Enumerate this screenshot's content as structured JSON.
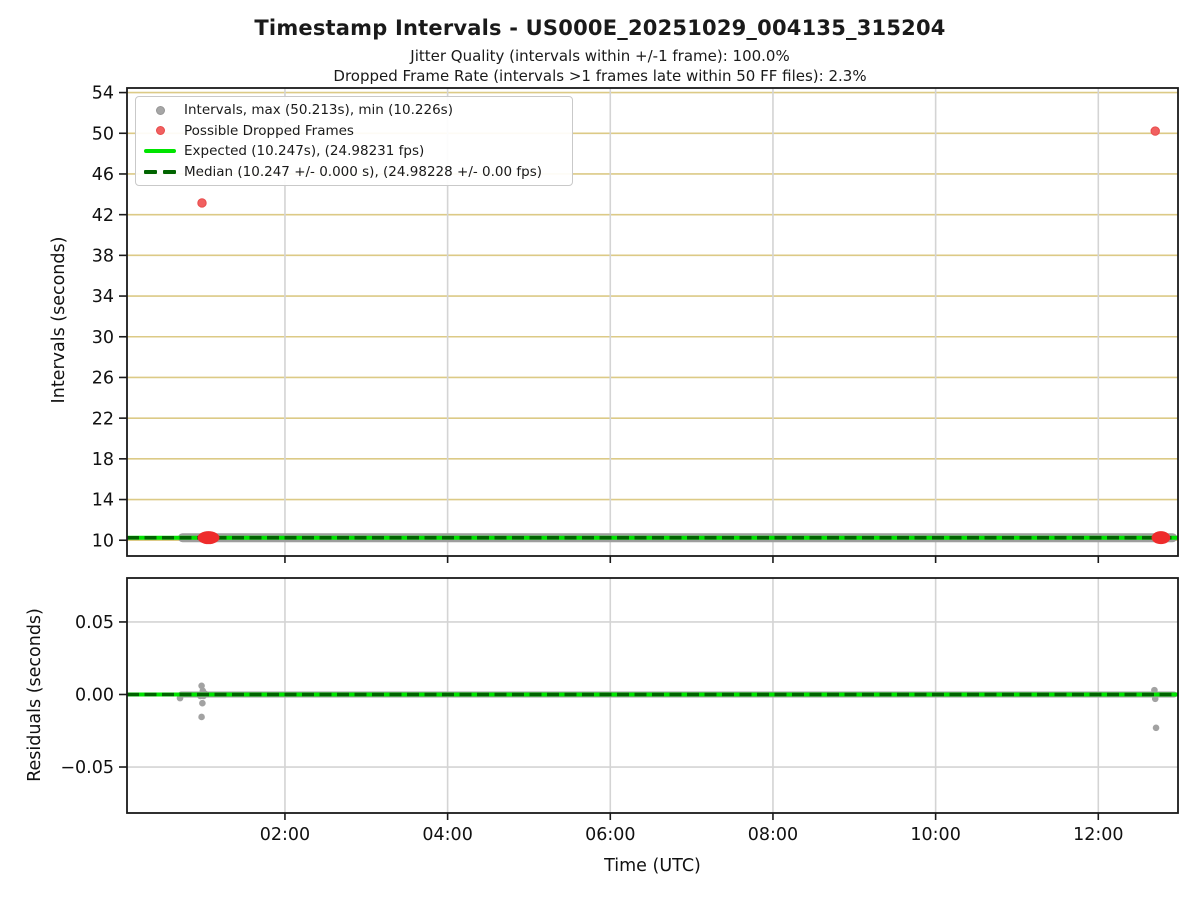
{
  "figure": {
    "title": "Timestamp Intervals - US000E_20251029_004135_315204",
    "subtitle1": "Jitter Quality (intervals within +/-1 frame): 100.0%",
    "subtitle2": "Dropped Frame Rate (intervals >1 frames late within 50 FF files): 2.3%"
  },
  "legend": {
    "items": [
      {
        "marker": "gray-dot-icon",
        "label": "Intervals, max (50.213s), min (10.226s)"
      },
      {
        "marker": "red-dot-icon",
        "label": "Possible Dropped Frames"
      },
      {
        "marker": "green-solid-line-icon",
        "label": "Expected (10.247s), (24.98231 fps)"
      },
      {
        "marker": "darkgreen-dashed-line-icon",
        "label": "Median (10.247 +/- 0.000 s), (24.98228 +/- 0.00 fps)"
      }
    ]
  },
  "colors": {
    "grid_y_top": "#dcca86",
    "grid_x": "#d4d4d4",
    "grid_y_bottom": "#d4d4d4",
    "interval_gray": "#a2a2a2",
    "band_gray": "#9e9e9e",
    "dropped_red": "#f16060",
    "dropped_red_dense": "#ee2b2b",
    "expected_green": "#00e400",
    "median_darkgreen": "#006400",
    "spine": "#1a1a1a"
  },
  "x_axis": {
    "label": "Time (UTC)",
    "lim_hours": [
      0.058,
      12.98
    ],
    "ticks": [
      {
        "t": 2,
        "label": "02:00"
      },
      {
        "t": 4,
        "label": "04:00"
      },
      {
        "t": 6,
        "label": "06:00"
      },
      {
        "t": 8,
        "label": "08:00"
      },
      {
        "t": 10,
        "label": "10:00"
      },
      {
        "t": 12,
        "label": "12:00"
      }
    ]
  },
  "chart_data": [
    {
      "type": "scatter",
      "name": "intervals-plot",
      "ylabel": "Intervals (seconds)",
      "ylim": [
        8.45,
        54.45
      ],
      "yticks": [
        10,
        14,
        18,
        22,
        26,
        30,
        34,
        38,
        42,
        46,
        50,
        54
      ],
      "ytick_labels": [
        "10",
        "14",
        "18",
        "22",
        "26",
        "30",
        "34",
        "38",
        "42",
        "46",
        "50",
        "54"
      ],
      "expected": {
        "interval_s": 10.247,
        "fps": 24.98231
      },
      "median": {
        "interval_s": 10.247,
        "interval_err_s": 0.0,
        "fps": 24.98228,
        "fps_err": 0.0
      },
      "stats": {
        "max_s": 50.213,
        "min_s": 10.226,
        "jitter_quality_pct": 100.0,
        "dropped_frame_rate_pct": 2.3
      },
      "interval_band": {
        "t_start": 0.685,
        "t_end": 12.97,
        "value": 10.247,
        "half_height_s": 0.22
      },
      "dropped_clusters": [
        {
          "t_center": 1.06,
          "t_halfspan": 0.135,
          "value": 10.25
        },
        {
          "t_center": 12.77,
          "t_halfspan": 0.115,
          "value": 10.25
        }
      ],
      "dropped_points": [
        {
          "t": 0.98,
          "value": 43.15
        },
        {
          "t": 12.7,
          "value": 50.213
        }
      ]
    },
    {
      "type": "scatter",
      "name": "residuals-plot",
      "ylabel": "Residuals (seconds)",
      "ylim": [
        -0.0817,
        0.0803
      ],
      "yticks": [
        -0.05,
        0.0,
        0.05
      ],
      "ytick_labels": [
        "−0.05",
        "0.00",
        "0.05"
      ],
      "expected_value": 0.0,
      "residual_band": {
        "t_start": 0.685,
        "t_end": 12.97,
        "value": 0.0
      },
      "points": [
        {
          "t": 0.71,
          "r": -0.0025
        },
        {
          "t": 0.975,
          "r": 0.006
        },
        {
          "t": 0.99,
          "r": 0.0025
        },
        {
          "t": 0.96,
          "r": -0.001
        },
        {
          "t": 0.98,
          "r": -0.0005
        },
        {
          "t": 1.0,
          "r": -0.001
        },
        {
          "t": 1.02,
          "r": 0.0005
        },
        {
          "t": 0.985,
          "r": -0.006
        },
        {
          "t": 0.975,
          "r": -0.0155
        },
        {
          "t": 12.69,
          "r": 0.003
        },
        {
          "t": 12.7,
          "r": -0.003
        },
        {
          "t": 12.71,
          "r": -0.023
        }
      ]
    }
  ]
}
